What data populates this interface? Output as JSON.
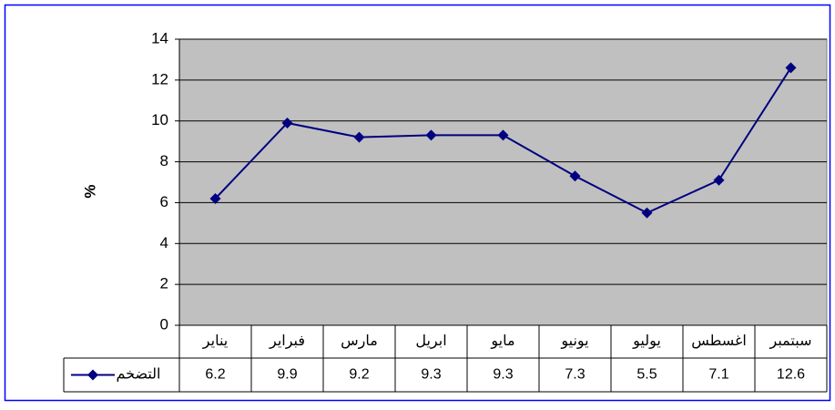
{
  "chart_data": {
    "type": "line",
    "y_label": "%",
    "categories": [
      "يناير",
      "فبراير",
      "مارس",
      "ابريل",
      "مايو",
      "يونيو",
      "يوليو",
      "اغسطس",
      "سبتمبر"
    ],
    "series": [
      {
        "name": "التضخم",
        "color": "#000080",
        "values": [
          6.2,
          9.9,
          9.2,
          9.3,
          9.3,
          7.3,
          5.5,
          7.1,
          12.6
        ]
      }
    ],
    "ylim": [
      0,
      14
    ],
    "yticks": [
      0,
      2,
      4,
      6,
      8,
      10,
      12,
      14
    ],
    "grid": true,
    "plot_background": "#c0c0c0"
  }
}
